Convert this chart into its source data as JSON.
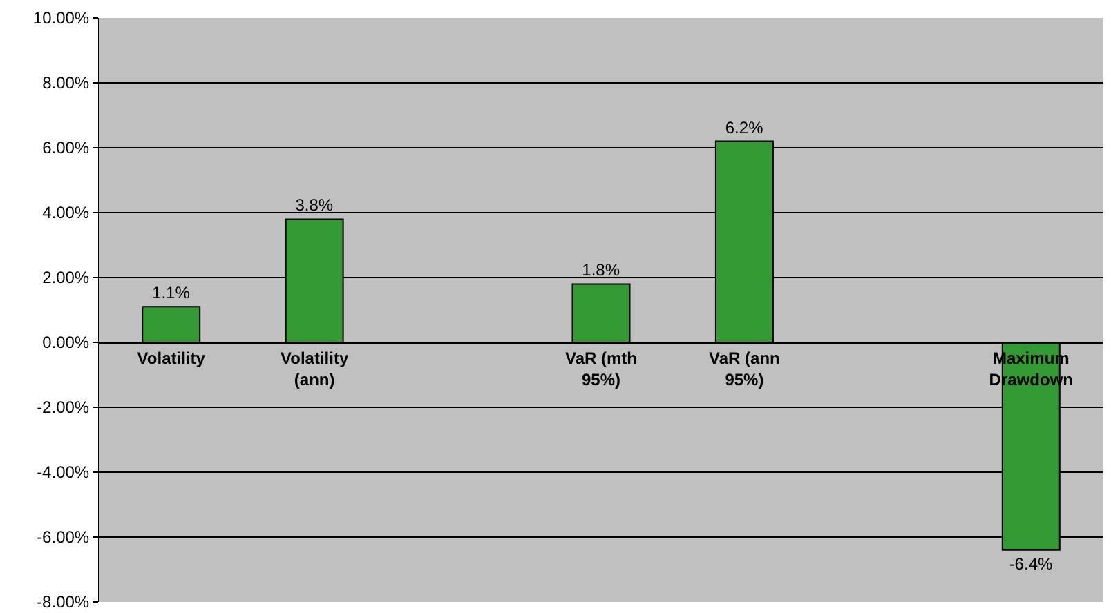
{
  "chart_data": {
    "type": "bar",
    "categories": [
      "Volatility",
      "Volatility (ann)",
      null,
      "VaR (mth 95%)",
      "VaR (ann 95%)",
      null,
      "Maximum Drawdown"
    ],
    "values": [
      1.1,
      3.8,
      null,
      1.8,
      6.2,
      null,
      -6.4
    ],
    "value_labels": [
      "1.1%",
      "3.8%",
      null,
      "1.8%",
      "6.2%",
      null,
      "-6.4%"
    ],
    "color": "#339933",
    "ylim": [
      -8,
      10
    ],
    "yticks": [
      {
        "value": -8,
        "label": "-8.00%"
      },
      {
        "value": -6,
        "label": "-6.00%"
      },
      {
        "value": -4,
        "label": "-4.00%"
      },
      {
        "value": -2,
        "label": "-2.00%"
      },
      {
        "value": 0,
        "label": "0.00%"
      },
      {
        "value": 2,
        "label": "2.00%"
      },
      {
        "value": 4,
        "label": "4.00%"
      },
      {
        "value": 6,
        "label": "6.00%"
      },
      {
        "value": 8,
        "label": "8.00%"
      },
      {
        "value": 10,
        "label": "10.00%"
      }
    ],
    "grid": "y"
  }
}
